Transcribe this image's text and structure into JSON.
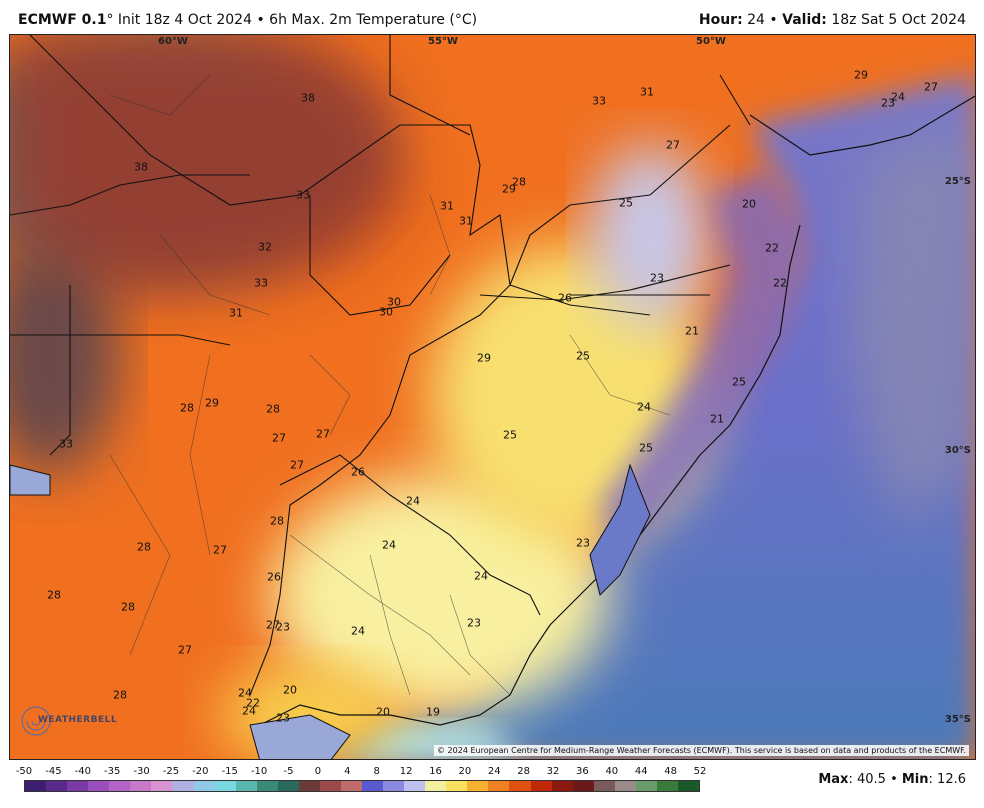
{
  "header": {
    "model": "ECMWF 0.1",
    "model_suffix": "°",
    "init": "Init 18z 4 Oct 2024",
    "sep": "•",
    "product": "6h Max. 2m Temperature (°C)",
    "hour_label": "Hour:",
    "hour_value": "24",
    "valid_label": "Valid:",
    "valid_value": "18z Sat 5 Oct 2024"
  },
  "map": {
    "lon_labels": [
      "60°W",
      "55°W",
      "50°W"
    ],
    "lat_labels": [
      "25°S",
      "30°S",
      "35°S"
    ],
    "copyright": "© 2024 European Centre for Medium-Range Weather Forecasts (ECMWF). This service is based on data and products of the ECMWF.",
    "logo_text": "WEATHERBELL",
    "values": [
      "38",
      "38",
      "33",
      "32",
      "33",
      "31",
      "31",
      "31",
      "28",
      "30",
      "30",
      "33",
      "29",
      "28",
      "29",
      "28",
      "27",
      "27",
      "27",
      "26",
      "33",
      "31",
      "27",
      "25",
      "20",
      "22",
      "22",
      "23",
      "26",
      "25",
      "21",
      "25",
      "24",
      "21",
      "25",
      "29",
      "24",
      "25",
      "24",
      "23",
      "24",
      "24",
      "23",
      "23",
      "20",
      "19",
      "28",
      "27",
      "28",
      "28",
      "26",
      "28",
      "27",
      "27",
      "28",
      "24",
      "22",
      "24",
      "23",
      "20",
      "29",
      "24",
      "27",
      "23"
    ]
  },
  "colorbar": {
    "ticks": [
      "-50",
      "-45",
      "-40",
      "-35",
      "-30",
      "-25",
      "-20",
      "-15",
      "-10",
      "-5",
      "0",
      "4",
      "8",
      "12",
      "16",
      "20",
      "24",
      "28",
      "32",
      "36",
      "40",
      "44",
      "48",
      "52"
    ],
    "colors": [
      "#3c1e6e",
      "#5a2a8a",
      "#7a3aa6",
      "#9b4fbf",
      "#b464c8",
      "#c878c8",
      "#d893d0",
      "#b0b0e0",
      "#90c8e8",
      "#7ad8e0",
      "#5ab8b0",
      "#3a8a7a",
      "#2a6a5a",
      "#6a3a3a",
      "#9a4a4a",
      "#c06a6a",
      "#5a5ad0",
      "#8a8ae0",
      "#c0c0f0",
      "#f0f0a0",
      "#f8e060",
      "#f8b030",
      "#f08020",
      "#e05010",
      "#c02808",
      "#8a1a10",
      "#6a1a1a",
      "#7a5a5a",
      "#9a8a8a",
      "#6a9a6a",
      "#3a7a3a",
      "#1a5a2a"
    ],
    "max_label": "Max",
    "max_value": "40.5",
    "min_label": "Min",
    "min_value": "12.6"
  }
}
